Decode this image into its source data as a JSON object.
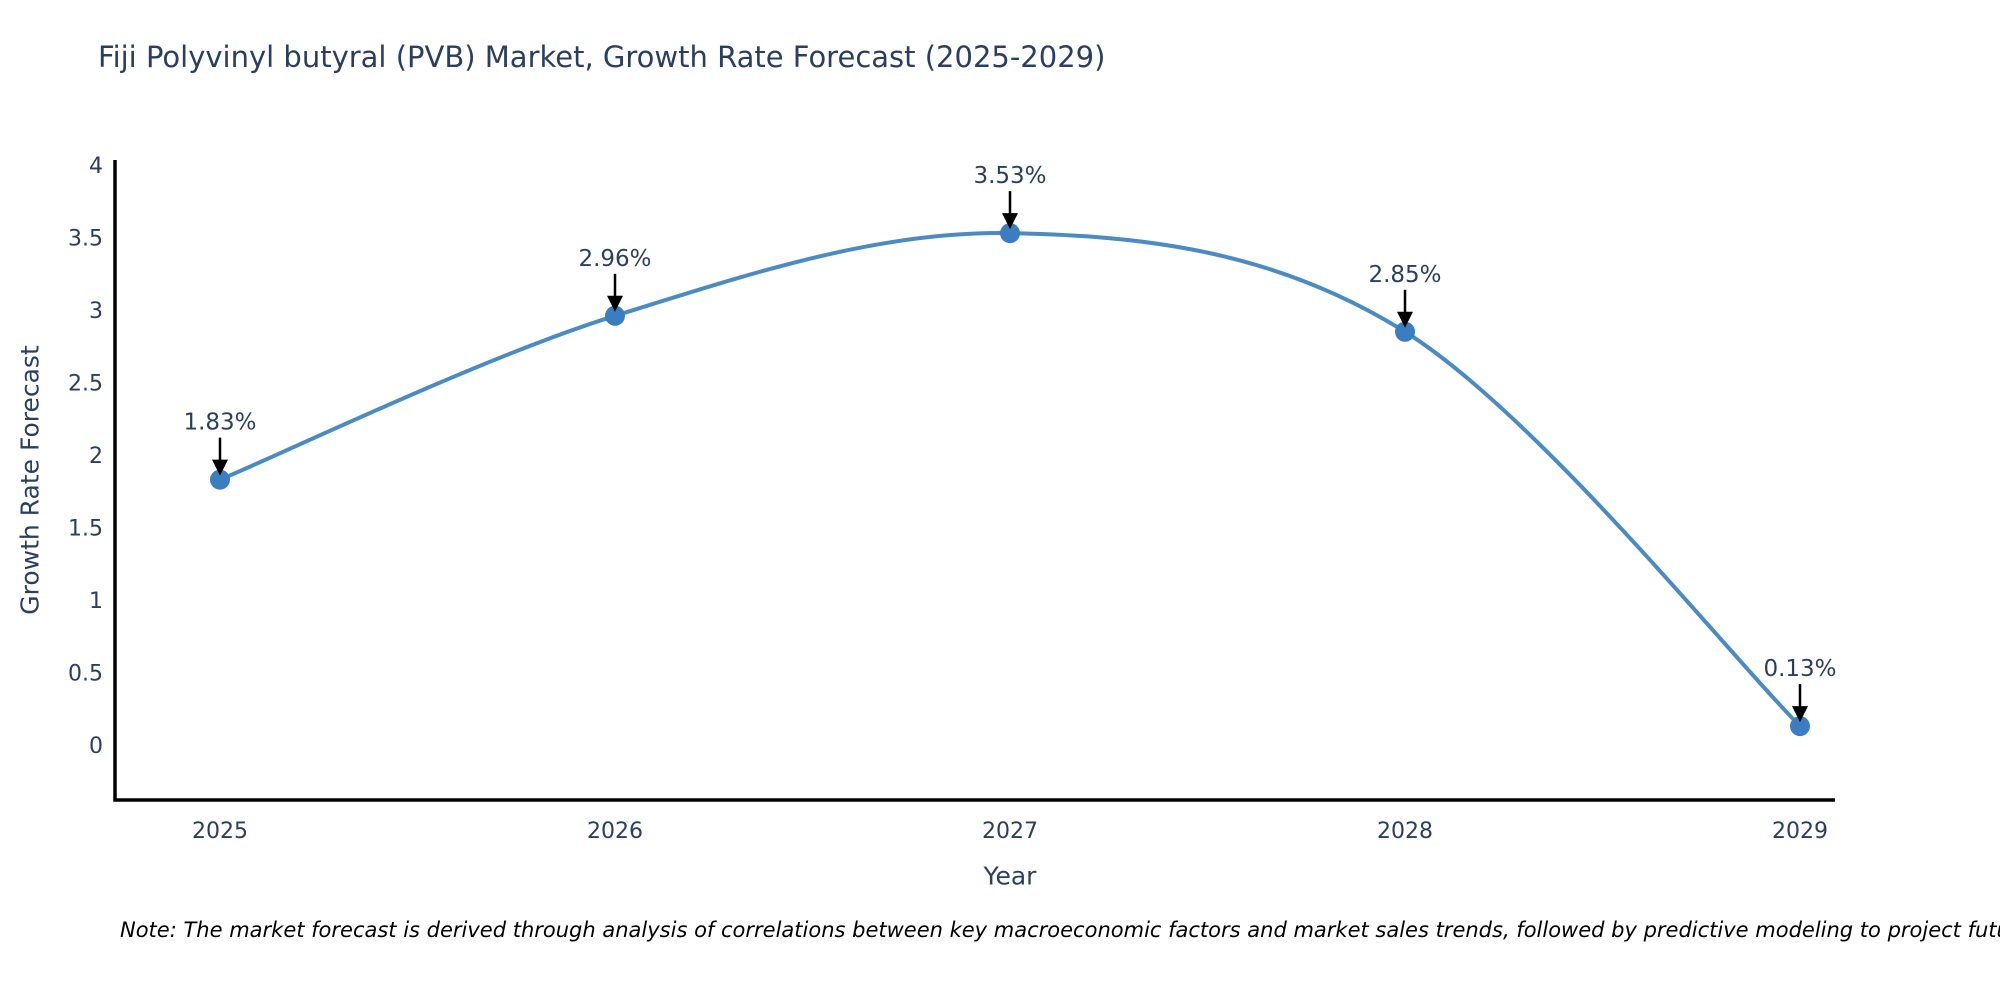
{
  "chart_data": {
    "type": "line",
    "title": "Fiji Polyvinyl butyral (PVB) Market, Growth Rate Forecast (2025-2029)",
    "xlabel": "Year",
    "ylabel": "Growth Rate Forecast",
    "categories": [
      "2025",
      "2026",
      "2027",
      "2028",
      "2029"
    ],
    "series": [
      {
        "name": "Growth Rate Forecast",
        "values": [
          1.83,
          2.96,
          3.53,
          2.85,
          0.13
        ]
      }
    ],
    "point_labels": [
      "1.83%",
      "2.96%",
      "3.53%",
      "2.85%",
      "0.13%"
    ],
    "ylim": [
      0,
      4
    ],
    "yticks": [
      0,
      0.5,
      1,
      1.5,
      2,
      2.5,
      3,
      3.5,
      4
    ],
    "grid": false,
    "legend": "none",
    "line_shape": "spline",
    "colors": {
      "line": "#4c8bc2",
      "marker": "#3a7ebf",
      "axis": "#000000",
      "text": "#2a3f5f",
      "annotation_arrow": "#000000",
      "note": "#000000"
    }
  },
  "footnote": {
    "text": "Note: The market forecast is derived through analysis of correlations between key macroeconomic factors and market sales trends, followed by predictive modeling to project future sales"
  }
}
